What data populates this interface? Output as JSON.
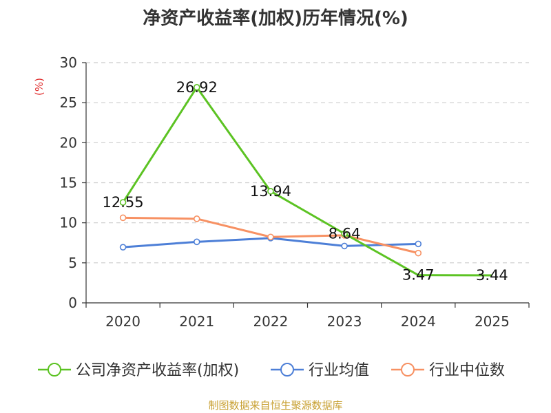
{
  "chart_data": {
    "type": "line",
    "title": "净资产收益率(加权)历年情况(%)",
    "ylabel": "(%)",
    "ylim": [
      0,
      30
    ],
    "yticks": [
      0,
      5,
      10,
      15,
      20,
      25,
      30
    ],
    "categories": [
      "2020",
      "2021",
      "2022",
      "2023",
      "2024",
      "2025"
    ],
    "grid": true,
    "legend_position": "bottom",
    "series": [
      {
        "name": "公司净资产收益率(加权)",
        "color": "#5cc323",
        "values": [
          12.55,
          26.92,
          13.94,
          8.64,
          3.47,
          3.44
        ],
        "labels": [
          "12.55",
          "26.92",
          "13.94",
          "8.64",
          "3.47",
          "3.44"
        ],
        "markers": [
          true,
          true,
          true,
          true,
          false,
          false
        ]
      },
      {
        "name": "行业均值",
        "color": "#4d7fd7",
        "values": [
          6.95,
          7.62,
          8.09,
          7.1,
          7.36,
          null
        ],
        "markers": [
          true,
          true,
          true,
          true,
          true,
          false
        ]
      },
      {
        "name": "行业中位数",
        "color": "#f79163",
        "values": [
          10.63,
          10.5,
          8.23,
          8.44,
          6.22,
          null
        ],
        "markers": [
          true,
          true,
          true,
          true,
          true,
          false
        ]
      }
    ]
  },
  "footer": {
    "source": "制图数据来自恒生聚源数据库"
  }
}
